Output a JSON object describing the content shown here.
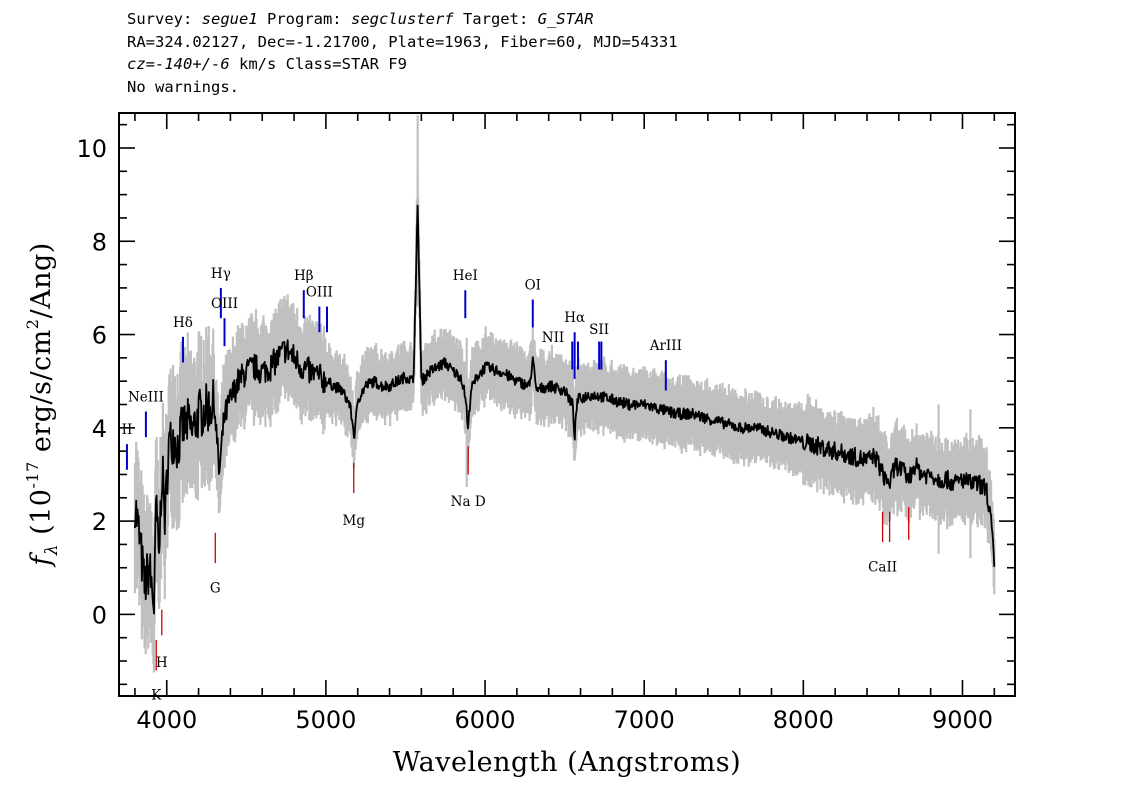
{
  "header": {
    "survey_label": "Survey: ",
    "survey": "segue1",
    "program_label": " Program: ",
    "program": "segclusterf",
    "target_label": " Target: ",
    "target": "G_STAR",
    "line2": "RA=324.02127, Dec=-1.21700, Plate=1963, Fiber=60, MJD=54331",
    "cz": "cz=-140+/-6",
    "cz_rest": " km/s Class=STAR F9",
    "line4": "No warnings."
  },
  "colors": {
    "flux": "#000000",
    "error": "#c0c0c0",
    "emission": "#0000cc",
    "absorption": "#cc0000",
    "axes": "#000000"
  },
  "chart_data": {
    "type": "line",
    "xlabel": "Wavelength (Angstroms)",
    "ylabel_parts": {
      "f": "f",
      "sub": "λ",
      "open": " (10",
      "exp": "-17",
      "mid": " erg/s/cm",
      "exp2": "2",
      "close": "/Ang)"
    },
    "xlim": [
      3700,
      9330
    ],
    "ylim": [
      -1.75,
      10.75
    ],
    "xticks": [
      4000,
      5000,
      6000,
      7000,
      8000,
      9000
    ],
    "yticks": [
      0,
      2,
      4,
      6,
      8,
      10
    ],
    "series": [
      {
        "role": "flux",
        "x": [
          3800,
          3830,
          3860,
          3890,
          3920,
          3935,
          3950,
          3970,
          3990,
          4010,
          4040,
          4070,
          4100,
          4130,
          4160,
          4200,
          4250,
          4300,
          4330,
          4360,
          4400,
          4450,
          4500,
          4550,
          4600,
          4650,
          4700,
          4750,
          4800,
          4850,
          4900,
          4950,
          5000,
          5050,
          5100,
          5150,
          5180,
          5200,
          5250,
          5300,
          5350,
          5400,
          5450,
          5500,
          5550,
          5577,
          5600,
          5650,
          5700,
          5750,
          5800,
          5850,
          5880,
          5893,
          5910,
          5950,
          6000,
          6100,
          6200,
          6280,
          6300,
          6320,
          6400,
          6500,
          6550,
          6563,
          6580,
          6650,
          6700,
          6800,
          6900,
          7000,
          7100,
          7200,
          7300,
          7400,
          7500,
          7600,
          7700,
          7800,
          7900,
          8000,
          8100,
          8200,
          8300,
          8400,
          8450,
          8500,
          8542,
          8580,
          8620,
          8662,
          8700,
          8750,
          8800,
          8850,
          8900,
          8950,
          9000,
          9050,
          9100,
          9150,
          9180,
          9200
        ],
        "y": [
          2.4,
          1.6,
          0.6,
          1.0,
          0.2,
          2.5,
          1.0,
          3.2,
          2.0,
          3.6,
          3.8,
          3.6,
          4.0,
          4.1,
          3.9,
          4.3,
          4.4,
          4.5,
          3.0,
          4.2,
          4.6,
          5.0,
          5.2,
          5.3,
          5.2,
          5.3,
          5.5,
          5.7,
          5.5,
          5.3,
          5.2,
          5.1,
          5.0,
          4.9,
          4.8,
          4.5,
          3.8,
          4.6,
          4.9,
          5.0,
          4.9,
          4.9,
          5.0,
          5.1,
          5.0,
          8.8,
          5.0,
          5.2,
          5.3,
          5.4,
          5.2,
          5.1,
          4.6,
          3.9,
          4.8,
          5.1,
          5.3,
          5.2,
          5.0,
          4.9,
          5.5,
          4.8,
          4.9,
          4.8,
          4.5,
          3.8,
          4.6,
          4.7,
          4.7,
          4.6,
          4.5,
          4.5,
          4.4,
          4.3,
          4.3,
          4.2,
          4.1,
          4.0,
          4.0,
          3.9,
          3.8,
          3.7,
          3.6,
          3.5,
          3.4,
          3.3,
          3.4,
          3.0,
          2.8,
          3.2,
          3.1,
          2.9,
          3.2,
          3.0,
          3.0,
          2.9,
          2.9,
          2.8,
          2.9,
          2.8,
          2.8,
          2.7,
          2.0,
          1.0
        ]
      }
    ],
    "annotations": [
      {
        "label": "II",
        "x": 3750,
        "kind": "emission",
        "y_top": 3.65,
        "y_bottom": 3.1,
        "label_y": 3.8,
        "label_side": "above"
      },
      {
        "label": "NeIII",
        "x": 3869,
        "kind": "emission",
        "y_top": 4.35,
        "y_bottom": 3.8,
        "label_y": 4.5,
        "label_side": "above"
      },
      {
        "label": "Hδ",
        "x": 4102,
        "kind": "emission",
        "y_top": 5.95,
        "y_bottom": 5.4,
        "label_y": 6.1,
        "label_side": "above"
      },
      {
        "label": "Hγ",
        "x": 4340,
        "kind": "emission",
        "y_top": 7.0,
        "y_bottom": 6.35,
        "label_y": 7.15,
        "label_side": "above"
      },
      {
        "label": "OIII",
        "x": 4363,
        "kind": "emission",
        "y_top": 6.35,
        "y_bottom": 5.75,
        "label_y": 6.5,
        "label_side": "above"
      },
      {
        "label": "Hβ",
        "x": 4861,
        "kind": "emission",
        "y_top": 6.95,
        "y_bottom": 6.35,
        "label_y": 7.1,
        "label_side": "above"
      },
      {
        "label": "OIII",
        "x": 4959,
        "kind": "emission",
        "y_top": 6.6,
        "y_bottom": 6.05,
        "label_y": 6.75,
        "label_side": "above"
      },
      {
        "label": "",
        "x": 5007,
        "kind": "emission",
        "y_top": 6.6,
        "y_bottom": 6.05,
        "label_y": 6.75,
        "label_side": "above"
      },
      {
        "label": "HeI",
        "x": 5876,
        "kind": "emission",
        "y_top": 6.95,
        "y_bottom": 6.35,
        "label_y": 7.1,
        "label_side": "above"
      },
      {
        "label": "OI",
        "x": 6300,
        "kind": "emission",
        "y_top": 6.75,
        "y_bottom": 6.15,
        "label_y": 6.9,
        "label_side": "above"
      },
      {
        "label": "NII",
        "x": 6548,
        "kind": "emission",
        "y_top": 5.85,
        "y_bottom": 5.25,
        "label_y": 5.95,
        "label_side": "left"
      },
      {
        "label": "Hα",
        "x": 6563,
        "kind": "emission",
        "y_top": 6.05,
        "y_bottom": 5.05,
        "label_y": 6.2,
        "label_side": "above"
      },
      {
        "label": "",
        "x": 6584,
        "kind": "emission",
        "y_top": 5.85,
        "y_bottom": 5.25,
        "label_y": 5.95,
        "label_side": "none"
      },
      {
        "label": "SII",
        "x": 6717,
        "kind": "emission",
        "y_top": 5.85,
        "y_bottom": 5.25,
        "label_y": 5.95,
        "label_side": "above"
      },
      {
        "label": "",
        "x": 6731,
        "kind": "emission",
        "y_top": 5.85,
        "y_bottom": 5.25,
        "label_y": 5.95,
        "label_side": "none"
      },
      {
        "label": "ArIII",
        "x": 7136,
        "kind": "emission",
        "y_top": 5.45,
        "y_bottom": 4.8,
        "label_y": 5.6,
        "label_side": "above"
      },
      {
        "label": "K",
        "x": 3934,
        "kind": "absorption",
        "y_top": -0.55,
        "y_bottom": -1.2,
        "label_y": -1.55,
        "label_side": "below"
      },
      {
        "label": "H",
        "x": 3969,
        "kind": "absorption",
        "y_top": 0.1,
        "y_bottom": -0.45,
        "label_y": -0.85,
        "label_side": "below"
      },
      {
        "label": "G",
        "x": 4305,
        "kind": "absorption",
        "y_top": 1.75,
        "y_bottom": 1.1,
        "label_y": 0.75,
        "label_side": "below"
      },
      {
        "label": "Mg",
        "x": 5175,
        "kind": "absorption",
        "y_top": 3.25,
        "y_bottom": 2.6,
        "label_y": 2.2,
        "label_side": "below"
      },
      {
        "label": "Na D",
        "x": 5894,
        "kind": "absorption",
        "y_top": 3.6,
        "y_bottom": 3.0,
        "label_y": 2.6,
        "label_side": "below"
      },
      {
        "label": "CaII",
        "x": 8498,
        "kind": "absorption",
        "y_top": 2.2,
        "y_bottom": 1.55,
        "label_y": 1.2,
        "label_side": "below"
      },
      {
        "label": "",
        "x": 8542,
        "kind": "absorption",
        "y_top": 2.2,
        "y_bottom": 1.55,
        "label_y": 1.2,
        "label_side": "none"
      },
      {
        "label": "",
        "x": 8662,
        "kind": "absorption",
        "y_top": 2.3,
        "y_bottom": 1.6,
        "label_y": 1.2,
        "label_side": "none"
      }
    ]
  }
}
